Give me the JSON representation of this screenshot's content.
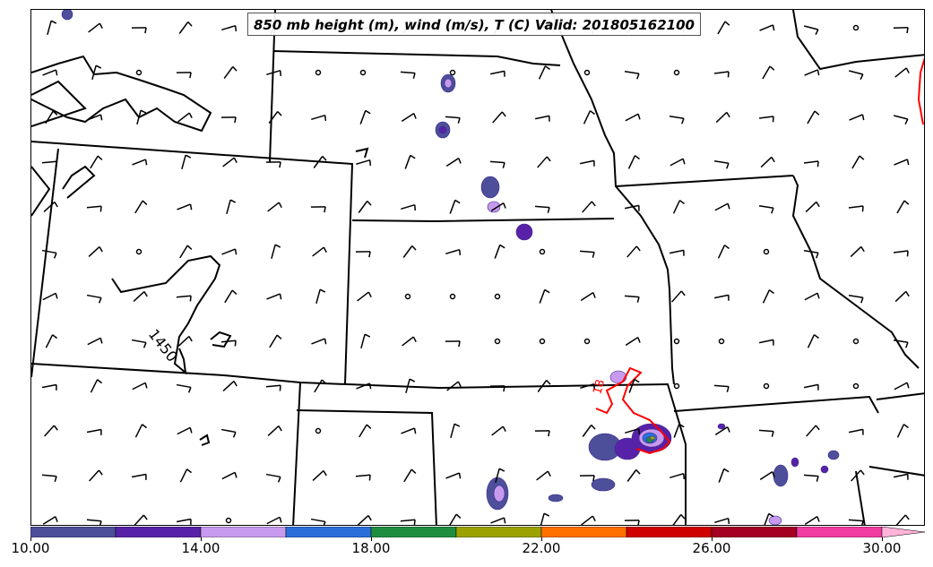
{
  "title": "850 mb height (m), wind (m/s), T (C) Valid: 201805162100",
  "contour_labels": {
    "height": "1450",
    "temperature": "18"
  },
  "colors": {
    "height_contour": "#000000",
    "temperature_contour": "#ff0000",
    "state_border": "#000000",
    "wind_barb": "#000000"
  },
  "colorbar": {
    "min": 10,
    "max": 30,
    "extend": "max",
    "bins": [
      {
        "from": 10,
        "to": 12,
        "color": "#4d4f9a"
      },
      {
        "from": 12,
        "to": 14,
        "color": "#5822a8"
      },
      {
        "from": 14,
        "to": 16,
        "color": "#c79aee"
      },
      {
        "from": 16,
        "to": 18,
        "color": "#2b6fdb"
      },
      {
        "from": 18,
        "to": 20,
        "color": "#1f8f3f"
      },
      {
        "from": 20,
        "to": 22,
        "color": "#9ca200"
      },
      {
        "from": 22,
        "to": 24,
        "color": "#ff6f00"
      },
      {
        "from": 24,
        "to": 26,
        "color": "#d10000"
      },
      {
        "from": 26,
        "to": 28,
        "color": "#a30022"
      },
      {
        "from": 28,
        "to": 30,
        "color": "#f03ca2"
      }
    ],
    "extend_color": "#ffb3d9",
    "tick_labels": [
      "10.00",
      "14.00",
      "18.00",
      "22.00",
      "26.00",
      "30.00"
    ]
  }
}
